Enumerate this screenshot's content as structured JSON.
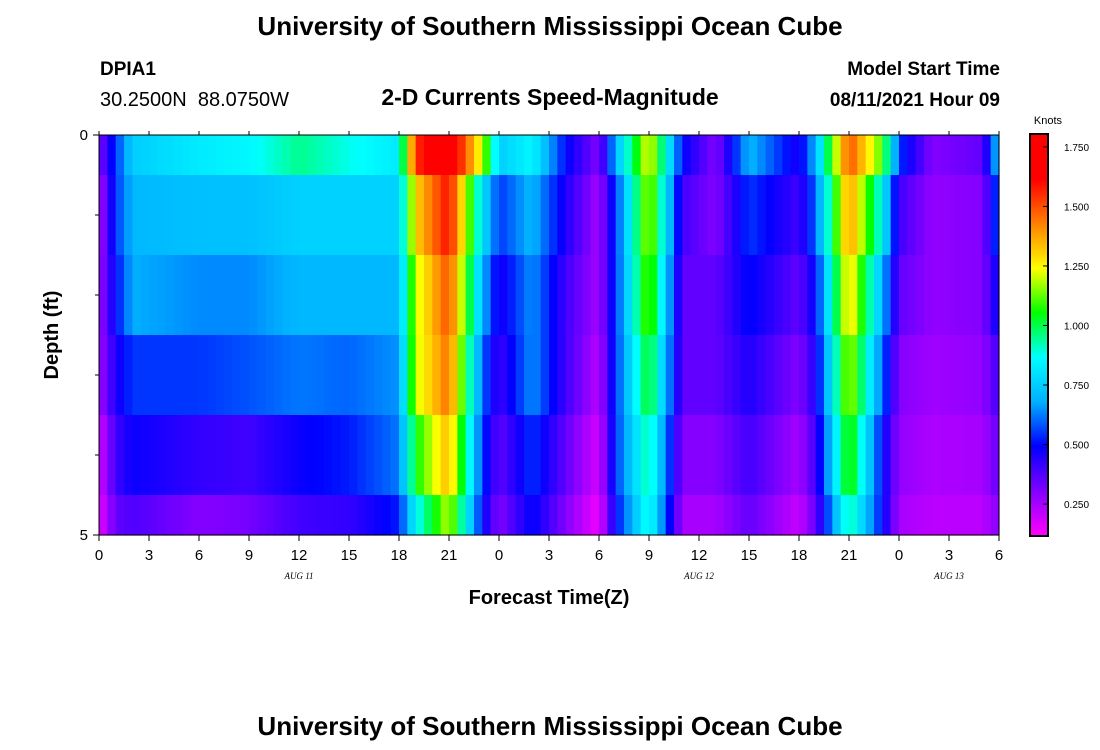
{
  "header": {
    "title": "University of Southern Mississippi Ocean Cube",
    "station_id": "DPIA1",
    "station_coords": "30.2500N  88.0750W",
    "plot_subtitle": "2-D Currents Speed-Magnitude",
    "model_start_label": "Model Start Time",
    "model_start_value": "08/11/2021 Hour 09"
  },
  "footer": {
    "title": "University of Southern Mississippi Ocean Cube"
  },
  "colors": {
    "background": "#ffffff",
    "text": "#000000",
    "axis": "#000000"
  },
  "chart_data": {
    "type": "heatmap",
    "title": "2-D Currents Speed-Magnitude",
    "xlabel": "Forecast Time(Z)",
    "ylabel": "Depth (ft)",
    "units_label": "Knots",
    "y_axis": {
      "range": [
        0,
        5
      ],
      "tick_labels": [
        "0",
        "5"
      ],
      "minor_tick_values": [
        1,
        2,
        3,
        4
      ]
    },
    "x_axis": {
      "hour_range": [
        0,
        54
      ],
      "ticks": [
        {
          "hour": 0,
          "label": "0"
        },
        {
          "hour": 3,
          "label": "3"
        },
        {
          "hour": 6,
          "label": "6"
        },
        {
          "hour": 9,
          "label": "9"
        },
        {
          "hour": 12,
          "label": "12"
        },
        {
          "hour": 15,
          "label": "15"
        },
        {
          "hour": 18,
          "label": "18"
        },
        {
          "hour": 21,
          "label": "21"
        },
        {
          "hour": 24,
          "label": "0"
        },
        {
          "hour": 27,
          "label": "3"
        },
        {
          "hour": 30,
          "label": "6"
        },
        {
          "hour": 33,
          "label": "9"
        },
        {
          "hour": 36,
          "label": "12"
        },
        {
          "hour": 39,
          "label": "15"
        },
        {
          "hour": 42,
          "label": "18"
        },
        {
          "hour": 45,
          "label": "21"
        },
        {
          "hour": 48,
          "label": "0"
        },
        {
          "hour": 51,
          "label": "3"
        },
        {
          "hour": 54,
          "label": "6"
        }
      ],
      "date_labels": [
        {
          "hour": 12,
          "label": "AUG 11"
        },
        {
          "hour": 36,
          "label": "AUG 12"
        },
        {
          "hour": 51,
          "label": "AUG 13"
        }
      ]
    },
    "depth_layers": [
      {
        "from": 0,
        "to": 0.5
      },
      {
        "from": 0.5,
        "to": 1.5
      },
      {
        "from": 1.5,
        "to": 2.5
      },
      {
        "from": 2.5,
        "to": 3.5
      },
      {
        "from": 3.5,
        "to": 4.5
      },
      {
        "from": 4.5,
        "to": 5
      }
    ],
    "value_range": [
      0.12,
      1.8
    ],
    "colorbar": {
      "tick_values": [
        1.75,
        1.5,
        1.25,
        1.0,
        0.75,
        0.5,
        0.25
      ],
      "tick_labels": [
        "1.750",
        "1.500",
        "1.250",
        "1.000",
        "0.750",
        "0.500",
        "0.250"
      ],
      "colors": [
        "#ff00ff",
        "#8000ff",
        "#0000ff",
        "#00b0ff",
        "#00ffff",
        "#00ff00",
        "#ffff00",
        "#ff8000",
        "#ff0000",
        "#ff0000"
      ]
    },
    "speed_keyframes": [
      {
        "hour": 0,
        "speeds": [
          0.3,
          0.22,
          0.25,
          0.25,
          0.18,
          0.15
        ]
      },
      {
        "hour": 1,
        "speeds": [
          0.55,
          0.55,
          0.5,
          0.45,
          0.4,
          0.35
        ]
      },
      {
        "hour": 2,
        "speeds": [
          0.75,
          0.7,
          0.68,
          0.55,
          0.48,
          0.38
        ]
      },
      {
        "hour": 6,
        "speeds": [
          0.82,
          0.72,
          0.64,
          0.55,
          0.42,
          0.3
        ]
      },
      {
        "hour": 9,
        "speeds": [
          0.85,
          0.72,
          0.64,
          0.58,
          0.4,
          0.32
        ]
      },
      {
        "hour": 12,
        "speeds": [
          0.95,
          0.76,
          0.7,
          0.62,
          0.48,
          0.4
        ]
      },
      {
        "hour": 15,
        "speeds": [
          0.88,
          0.76,
          0.7,
          0.6,
          0.52,
          0.42
        ]
      },
      {
        "hour": 18,
        "speeds": [
          0.82,
          0.76,
          0.7,
          0.65,
          0.62,
          0.52
        ]
      },
      {
        "hour": 19,
        "speeds": [
          1.55,
          1.3,
          1.2,
          1.2,
          1.05,
          0.85
        ]
      },
      {
        "hour": 21,
        "speeds": [
          1.75,
          1.6,
          1.5,
          1.45,
          1.35,
          1.2
        ]
      },
      {
        "hour": 23,
        "speeds": [
          1.2,
          0.8,
          0.7,
          0.6,
          0.55,
          0.5
        ]
      },
      {
        "hour": 24,
        "speeds": [
          0.75,
          0.55,
          0.45,
          0.4,
          0.35,
          0.3
        ]
      },
      {
        "hour": 26,
        "speeds": [
          0.85,
          0.7,
          0.65,
          0.65,
          0.55,
          0.5
        ]
      },
      {
        "hour": 28,
        "speeds": [
          0.5,
          0.45,
          0.4,
          0.4,
          0.35,
          0.3
        ]
      },
      {
        "hour": 30,
        "speeds": [
          0.3,
          0.25,
          0.25,
          0.22,
          0.18,
          0.14
        ]
      },
      {
        "hour": 31,
        "speeds": [
          0.7,
          0.55,
          0.55,
          0.55,
          0.55,
          0.5
        ]
      },
      {
        "hour": 33,
        "speeds": [
          1.25,
          1.2,
          1.15,
          1.05,
          0.95,
          0.9
        ]
      },
      {
        "hour": 35,
        "speeds": [
          0.5,
          0.4,
          0.35,
          0.35,
          0.3,
          0.25
        ]
      },
      {
        "hour": 37,
        "speeds": [
          0.3,
          0.3,
          0.35,
          0.35,
          0.3,
          0.25
        ]
      },
      {
        "hour": 39,
        "speeds": [
          0.7,
          0.55,
          0.5,
          0.45,
          0.4,
          0.35
        ]
      },
      {
        "hour": 42,
        "speeds": [
          0.45,
          0.4,
          0.35,
          0.3,
          0.25,
          0.2
        ]
      },
      {
        "hour": 43,
        "speeds": [
          0.7,
          0.6,
          0.5,
          0.45,
          0.4,
          0.35
        ]
      },
      {
        "hour": 45,
        "speeds": [
          1.5,
          1.4,
          1.3,
          1.2,
          1.1,
          0.95
        ]
      },
      {
        "hour": 47,
        "speeds": [
          1.1,
          0.85,
          0.7,
          0.6,
          0.5,
          0.5
        ]
      },
      {
        "hour": 48,
        "speeds": [
          0.55,
          0.4,
          0.35,
          0.3,
          0.28,
          0.25
        ]
      },
      {
        "hour": 50,
        "speeds": [
          0.3,
          0.28,
          0.28,
          0.26,
          0.24,
          0.22
        ]
      },
      {
        "hour": 53,
        "speeds": [
          0.35,
          0.3,
          0.3,
          0.28,
          0.25,
          0.22
        ]
      },
      {
        "hour": 54,
        "speeds": [
          0.75,
          0.6,
          0.5,
          0.4,
          0.35,
          0.3
        ]
      }
    ]
  }
}
